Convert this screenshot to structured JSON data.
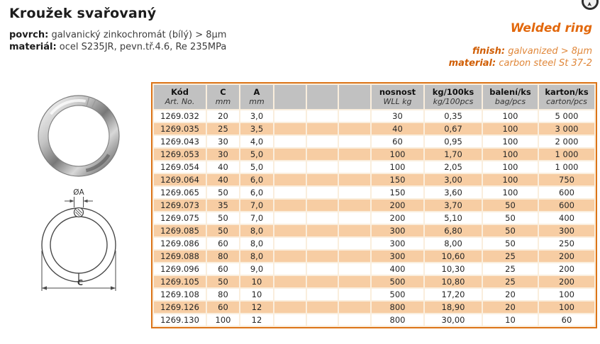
{
  "page": {
    "title": "Kroužek svařovaný",
    "details": [
      {
        "label": "povrch:",
        "value": "galvanický zinkochromát (bílý) > 8μm"
      },
      {
        "label": "materiál:",
        "value": "ocel S235JR, pevn.tř.4.6, Re 235MPa"
      }
    ],
    "english": {
      "title": "Welded ring",
      "details": [
        {
          "label": "finish:",
          "value": "galvanized > 8μm"
        },
        {
          "label": "material:",
          "value": "carbon steel St 37-2"
        }
      ]
    }
  },
  "icons": {
    "top_right": "arrow-up-circle"
  },
  "diagram": {
    "wire_diameter_label": "ØA",
    "outer_diameter_label": "C"
  },
  "colors": {
    "orange_border": "#dc7418",
    "orange_heading": "#e2680c",
    "orange_label": "#d05e05",
    "orange_value": "#e0873a",
    "header_gray": "#c1c1c1",
    "row_peach": "#f7cda3",
    "row_white": "#ffffff",
    "table_spacing_bg": "#faeedd",
    "text_dark": "#262626"
  },
  "table": {
    "columns": [
      {
        "title": "Kód",
        "sub": "Art. No."
      },
      {
        "title": "C",
        "sub": "mm"
      },
      {
        "title": "A",
        "sub": "mm"
      },
      {
        "title": "",
        "sub": ""
      },
      {
        "title": "",
        "sub": ""
      },
      {
        "title": "",
        "sub": ""
      },
      {
        "title": "nosnost",
        "sub": "WLL kg"
      },
      {
        "title": "kg/100ks",
        "sub": "kg/100pcs"
      },
      {
        "title": "balení/ks",
        "sub": "bag/pcs"
      },
      {
        "title": "karton/ks",
        "sub": "carton/pcs"
      }
    ],
    "rows": [
      [
        "1269.032",
        "20",
        "3,0",
        "",
        "",
        "",
        "30",
        "0,35",
        "100",
        "5 000"
      ],
      [
        "1269.035",
        "25",
        "3,5",
        "",
        "",
        "",
        "40",
        "0,67",
        "100",
        "3 000"
      ],
      [
        "1269.043",
        "30",
        "4,0",
        "",
        "",
        "",
        "60",
        "0,95",
        "100",
        "2 000"
      ],
      [
        "1269.053",
        "30",
        "5,0",
        "",
        "",
        "",
        "100",
        "1,70",
        "100",
        "1 000"
      ],
      [
        "1269.054",
        "40",
        "5,0",
        "",
        "",
        "",
        "100",
        "2,05",
        "100",
        "1 000"
      ],
      [
        "1269.064",
        "40",
        "6,0",
        "",
        "",
        "",
        "150",
        "3,00",
        "100",
        "750"
      ],
      [
        "1269.065",
        "50",
        "6,0",
        "",
        "",
        "",
        "150",
        "3,60",
        "100",
        "600"
      ],
      [
        "1269.073",
        "35",
        "7,0",
        "",
        "",
        "",
        "200",
        "3,70",
        "50",
        "600"
      ],
      [
        "1269.075",
        "50",
        "7,0",
        "",
        "",
        "",
        "200",
        "5,10",
        "50",
        "400"
      ],
      [
        "1269.085",
        "50",
        "8,0",
        "",
        "",
        "",
        "300",
        "6,80",
        "50",
        "300"
      ],
      [
        "1269.086",
        "60",
        "8,0",
        "",
        "",
        "",
        "300",
        "8,00",
        "50",
        "250"
      ],
      [
        "1269.088",
        "80",
        "8,0",
        "",
        "",
        "",
        "300",
        "10,60",
        "25",
        "200"
      ],
      [
        "1269.096",
        "60",
        "9,0",
        "",
        "",
        "",
        "400",
        "10,30",
        "25",
        "200"
      ],
      [
        "1269.105",
        "50",
        "10",
        "",
        "",
        "",
        "500",
        "10,80",
        "25",
        "200"
      ],
      [
        "1269.108",
        "80",
        "10",
        "",
        "",
        "",
        "500",
        "17,20",
        "20",
        "100"
      ],
      [
        "1269.126",
        "60",
        "12",
        "",
        "",
        "",
        "800",
        "18,90",
        "20",
        "100"
      ],
      [
        "1269.130",
        "100",
        "12",
        "",
        "",
        "",
        "800",
        "30,00",
        "10",
        "60"
      ]
    ]
  }
}
